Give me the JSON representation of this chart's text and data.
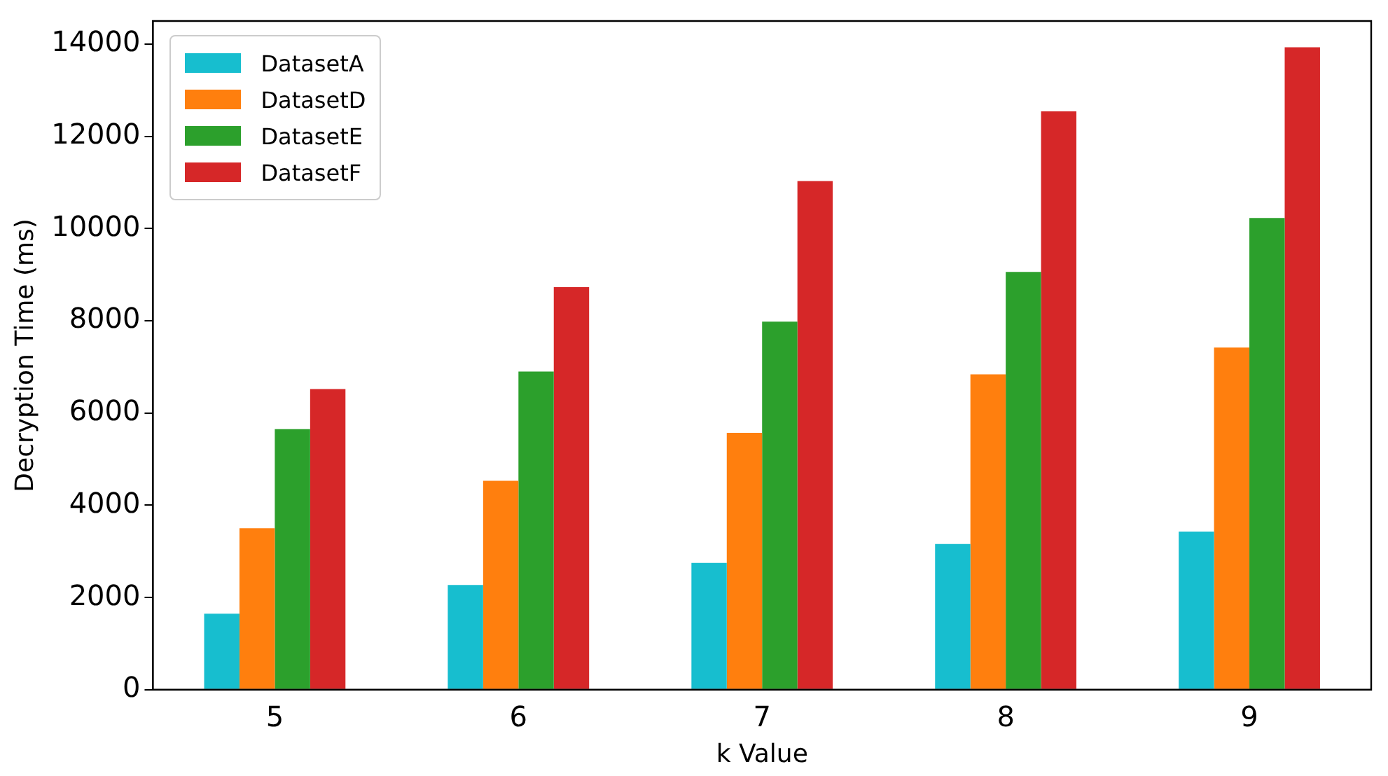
{
  "chart_data": {
    "type": "bar",
    "xlabel": "k Value",
    "ylabel": "Decryption Time (ms)",
    "categories": [
      "5",
      "6",
      "7",
      "8",
      "9"
    ],
    "series": [
      {
        "name": "DatasetA",
        "color": "#17becf",
        "values": [
          1650,
          2270,
          2750,
          3160,
          3430
        ]
      },
      {
        "name": "DatasetD",
        "color": "#ff7f0e",
        "values": [
          3500,
          4530,
          5570,
          6840,
          7420
        ]
      },
      {
        "name": "DatasetE",
        "color": "#2ca02c",
        "values": [
          5650,
          6900,
          7980,
          9060,
          10230
        ]
      },
      {
        "name": "DatasetF",
        "color": "#d62728",
        "values": [
          6520,
          8730,
          11030,
          12540,
          13930
        ]
      }
    ],
    "ylim": [
      0,
      14500
    ],
    "yticks": [
      0,
      2000,
      4000,
      6000,
      8000,
      10000,
      12000,
      14000
    ],
    "grid": false,
    "legend": "top left"
  }
}
